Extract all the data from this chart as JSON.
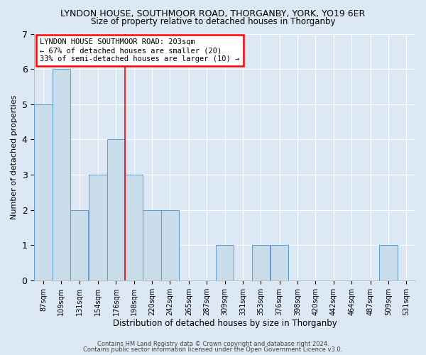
{
  "title": "LYNDON HOUSE, SOUTHMOOR ROAD, THORGANBY, YORK, YO19 6ER",
  "subtitle": "Size of property relative to detached houses in Thorganby",
  "xlabel": "Distribution of detached houses by size in Thorganby",
  "ylabel": "Number of detached properties",
  "bin_starts": [
    87,
    109,
    131,
    154,
    176,
    198,
    220,
    242,
    265,
    287,
    309,
    331,
    353,
    376,
    398,
    420,
    442,
    464,
    487,
    509,
    531
  ],
  "counts": [
    5,
    6,
    2,
    3,
    4,
    3,
    2,
    2,
    0,
    0,
    1,
    0,
    1,
    1,
    0,
    0,
    0,
    0,
    0,
    1,
    0
  ],
  "bar_color": "#c8dcea",
  "bar_edge_color": "#5b9bd5",
  "red_line_x": 198,
  "ylim": [
    0,
    7
  ],
  "annotation_text": "LYNDON HOUSE SOUTHMOOR ROAD: 203sqm\n← 67% of detached houses are smaller (20)\n33% of semi-detached houses are larger (10) →",
  "annotation_box_facecolor": "white",
  "annotation_box_edgecolor": "red",
  "footer_text1": "Contains HM Land Registry data © Crown copyright and database right 2024.",
  "footer_text2": "Contains public sector information licensed under the Open Government Licence v3.0.",
  "bg_color": "#dce9f5",
  "title_fontsize": 9,
  "subtitle_fontsize": 8.5,
  "ylabel_fontsize": 8,
  "xlabel_fontsize": 8.5,
  "tick_fontsize": 7,
  "annotation_fontsize": 7.5,
  "footer_fontsize": 6
}
